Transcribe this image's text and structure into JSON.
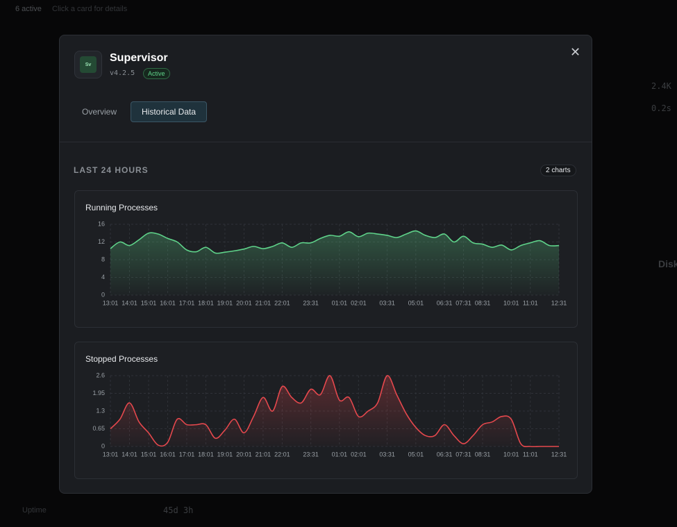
{
  "background": {
    "status": "6 active",
    "hint": "Click a card for details",
    "metrics": [
      {
        "label": "Uptime",
        "value": "45d 3h"
      },
      {
        "value": "2.4K"
      },
      {
        "value": "0.2s"
      },
      {
        "label": "Disk"
      }
    ]
  },
  "modal": {
    "icon": "Sv",
    "title": "Supervisor",
    "version": "v4.2.5",
    "status": "Active",
    "tabs": [
      "Overview",
      "Historical Data"
    ],
    "section": "LAST 24 HOURS",
    "chart_count": "2 charts"
  },
  "chart_data": [
    {
      "type": "line",
      "title": "Running Processes",
      "color": "#5fd38a",
      "grid": true,
      "categories": [
        "13:01",
        null,
        "14:01",
        null,
        "15:01",
        null,
        "16:01",
        null,
        "17:01",
        null,
        "18:01",
        null,
        "19:01",
        null,
        "20:01",
        null,
        "21:01",
        null,
        "22:01",
        null,
        null,
        "23:31",
        null,
        null,
        "01:01",
        null,
        "02:01",
        null,
        null,
        "03:31",
        null,
        null,
        "05:01",
        null,
        null,
        "06:31",
        null,
        "07:31",
        null,
        "08:31",
        null,
        null,
        "10:01",
        null,
        "11:01",
        null,
        null,
        "12:31"
      ],
      "values": [
        10.5,
        12,
        11.2,
        12.5,
        14,
        13.8,
        12.8,
        12,
        10.2,
        9.8,
        10.8,
        9.5,
        9.7,
        10,
        10.4,
        11,
        10.5,
        11,
        11.8,
        10.8,
        11.8,
        11.8,
        12.8,
        13.5,
        13.3,
        14.3,
        13.2,
        14,
        13.8,
        13.5,
        13,
        13.8,
        14.5,
        13.5,
        13,
        13.8,
        12,
        13.3,
        11.8,
        11.5,
        10.8,
        11.3,
        10.2,
        11.2,
        11.8,
        12.3,
        11.2,
        11.2
      ],
      "ylim": [
        0,
        16
      ],
      "yticks": [
        0,
        4,
        8,
        12,
        16
      ]
    },
    {
      "type": "line",
      "title": "Stopped Processes",
      "color": "#e5484d",
      "grid": true,
      "categories": [
        "13:01",
        null,
        "14:01",
        null,
        "15:01",
        null,
        "16:01",
        null,
        "17:01",
        null,
        "18:01",
        null,
        "19:01",
        null,
        "20:01",
        null,
        "21:01",
        null,
        "22:01",
        null,
        null,
        "23:31",
        null,
        null,
        "01:01",
        null,
        "02:01",
        null,
        null,
        "03:31",
        null,
        null,
        "05:01",
        null,
        null,
        "06:31",
        null,
        "07:31",
        null,
        "08:31",
        null,
        null,
        "10:01",
        null,
        "11:01",
        null,
        null,
        "12:31"
      ],
      "values": [
        0.65,
        1,
        1.6,
        0.9,
        0.5,
        0.05,
        0.15,
        1,
        0.8,
        0.8,
        0.8,
        0.3,
        0.6,
        1,
        0.5,
        1.1,
        1.8,
        1.3,
        2.2,
        1.8,
        1.6,
        2.1,
        1.9,
        2.6,
        1.7,
        1.8,
        1.1,
        1.3,
        1.6,
        2.6,
        1.9,
        1.2,
        0.7,
        0.4,
        0.4,
        0.8,
        0.4,
        0.1,
        0.4,
        0.8,
        0.9,
        1.1,
        1,
        0.1,
        0,
        0,
        0,
        0
      ],
      "ylim": [
        0,
        2.6
      ],
      "yticks": [
        0,
        0.65,
        1.3,
        1.95,
        2.6
      ]
    }
  ]
}
